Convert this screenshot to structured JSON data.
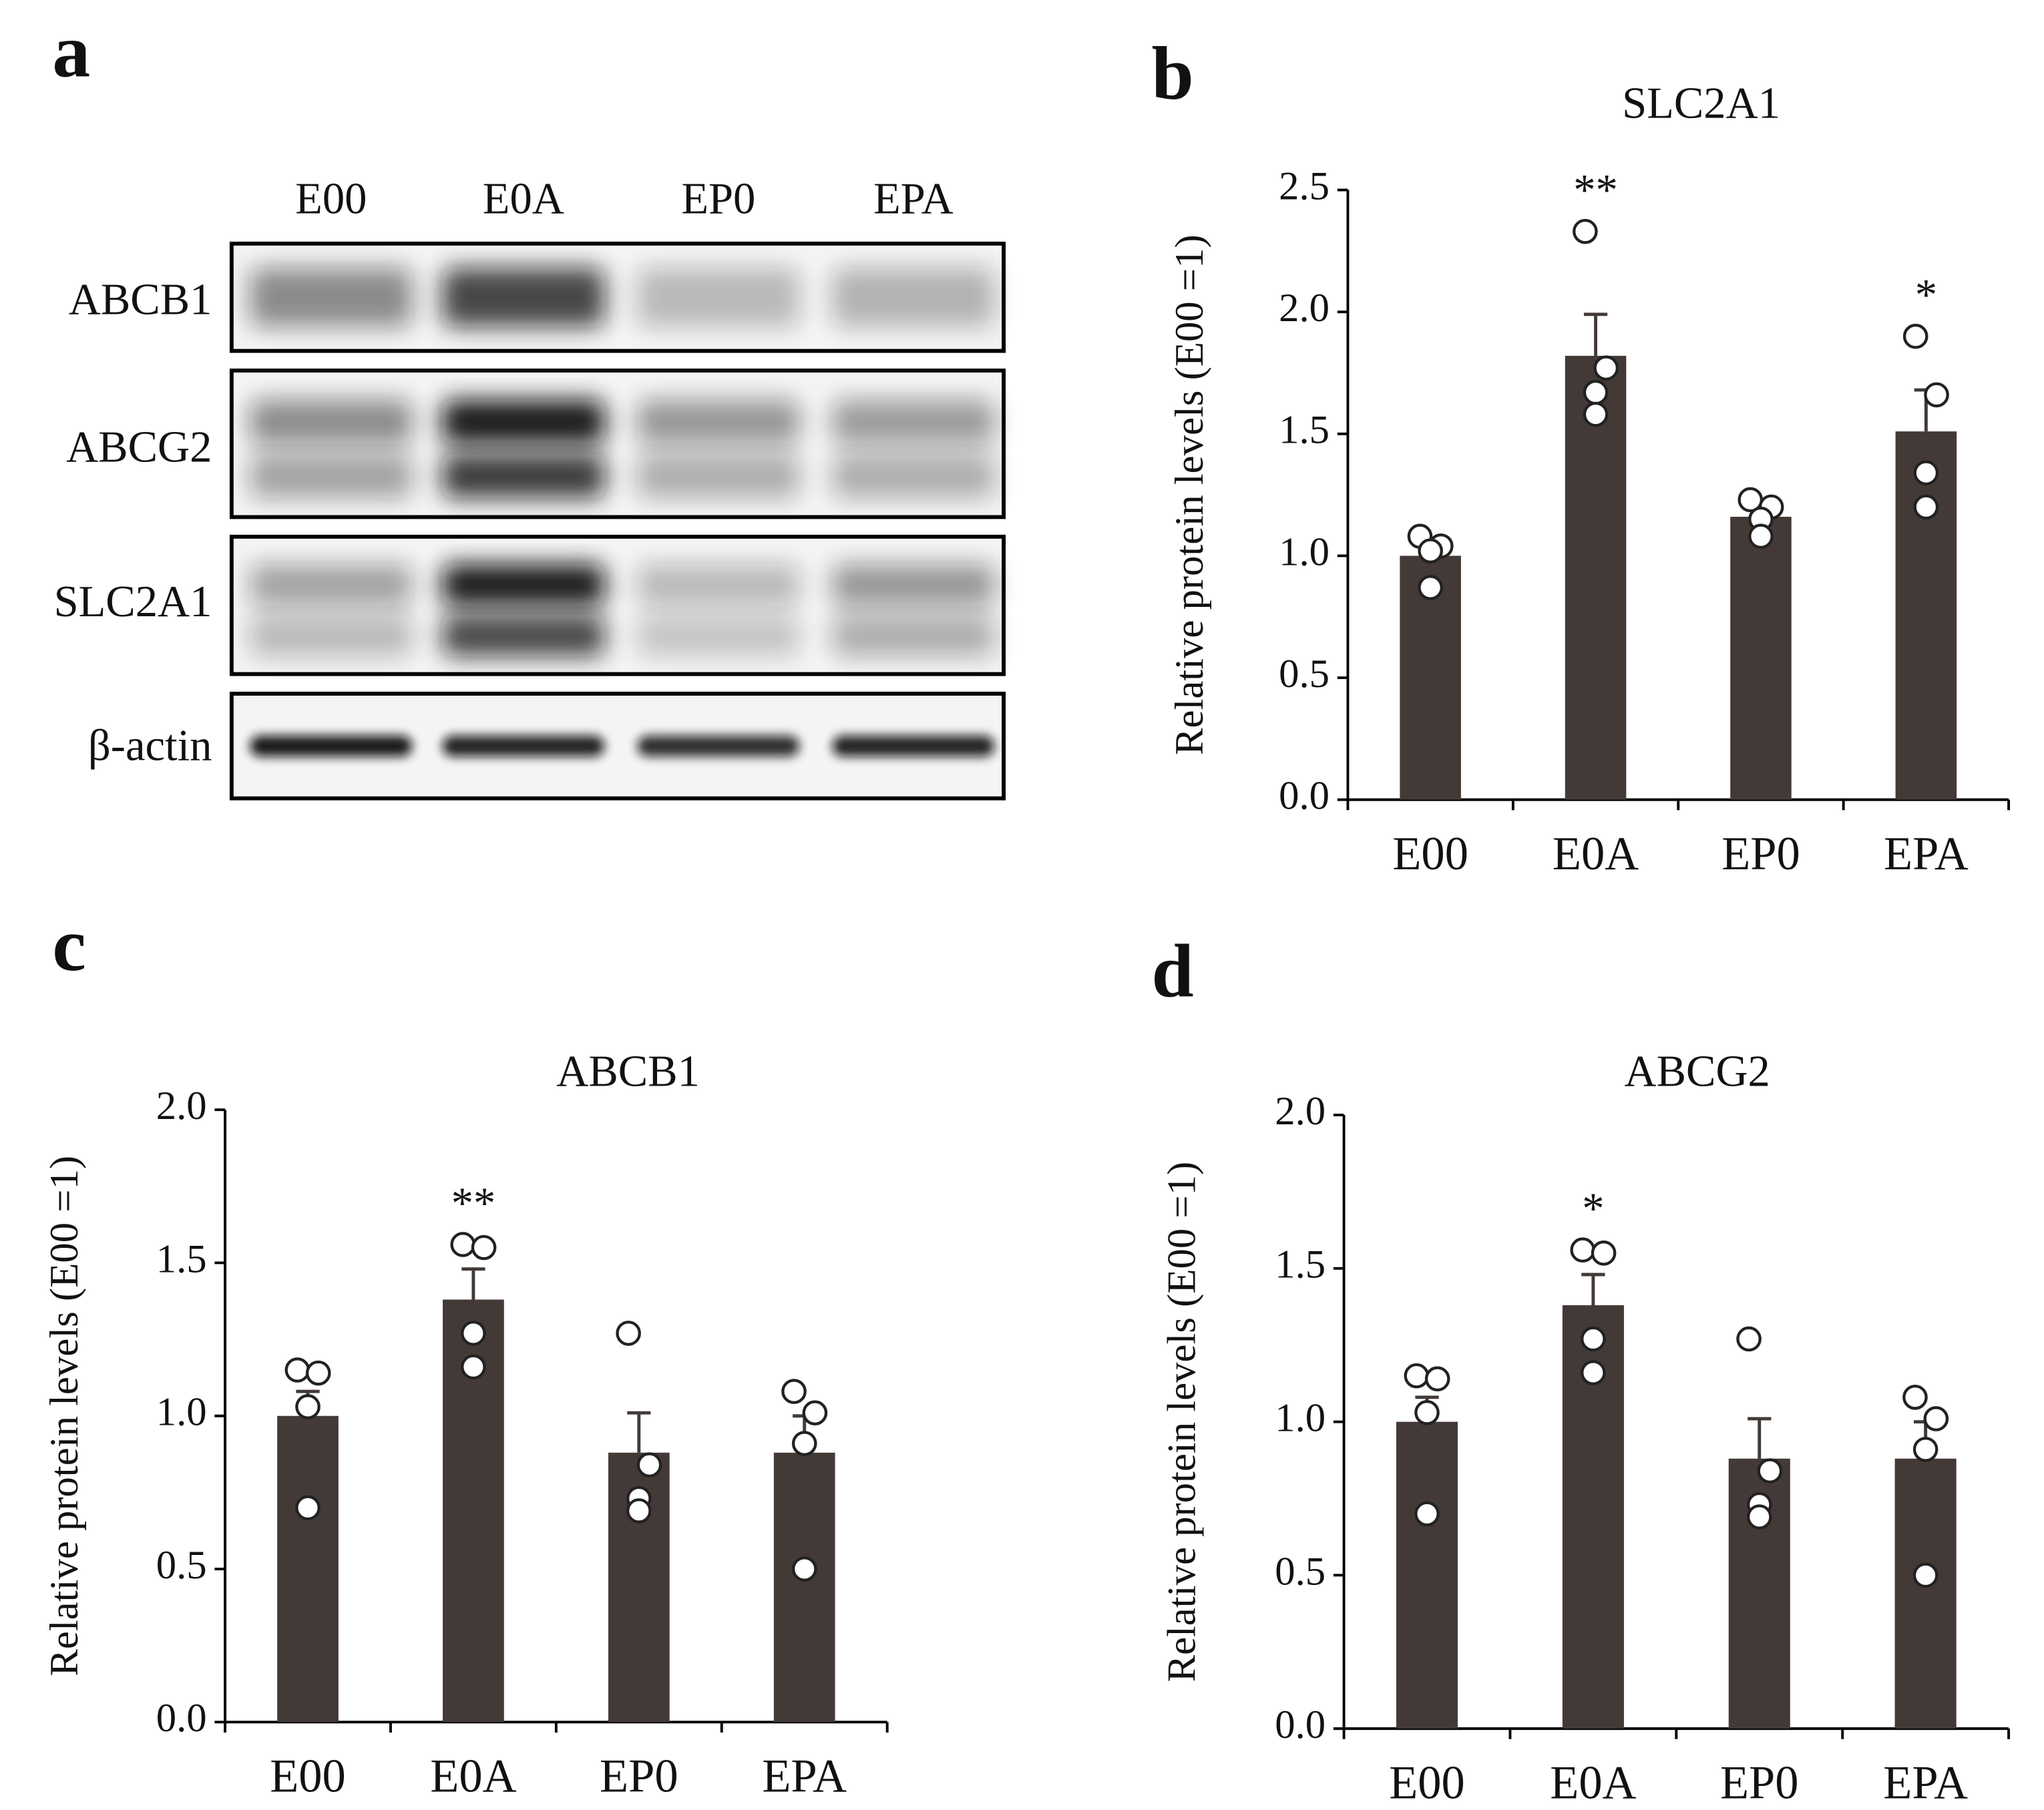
{
  "panel_labels": [
    "a",
    "b",
    "c",
    "d"
  ],
  "blot": {
    "lanes": [
      "E00",
      "E0A",
      "EP0",
      "EPA"
    ],
    "rows": [
      "ABCB1",
      "ABCG2",
      "SLC2A1",
      "β-actin"
    ]
  },
  "chart_data": [
    {
      "type": "bar",
      "title": "SLC2A1",
      "y_label": "Relative protein levels (E00 =1)",
      "color": "#433a37",
      "categories": [
        "E00",
        "E0A",
        "EP0",
        "EPA"
      ],
      "values": [
        1.0,
        1.82,
        1.16,
        1.51
      ],
      "errors": [
        0.05,
        0.17,
        0.04,
        0.17
      ],
      "points": [
        [
          1.08,
          1.04,
          1.02,
          0.87
        ],
        [
          2.33,
          1.77,
          1.67,
          1.58
        ],
        [
          1.23,
          1.2,
          1.15,
          1.08
        ],
        [
          1.9,
          1.66,
          1.34,
          1.2
        ]
      ],
      "significance": [
        null,
        "**",
        null,
        "*"
      ],
      "ylim": [
        0,
        2.5
      ],
      "yticks": [
        {
          "value": 0,
          "label": "0.0"
        },
        0.5,
        {
          "value": 1,
          "label": "1.0"
        },
        1.5,
        {
          "value": 2,
          "label": "2.0"
        },
        2.5
      ]
    },
    {
      "type": "bar",
      "title": "ABCB1",
      "y_label": "Relative protein levels (E00 =1)",
      "color": "#433a37",
      "categories": [
        "E00",
        "E0A",
        "EP0",
        "EPA"
      ],
      "values": [
        1.0,
        1.38,
        0.88,
        0.88
      ],
      "errors": [
        0.08,
        0.1,
        0.13,
        0.12
      ],
      "points": [
        [
          1.15,
          1.14,
          1.03,
          0.7
        ],
        [
          1.56,
          1.55,
          1.27,
          1.16
        ],
        [
          1.27,
          0.84,
          0.73,
          0.69
        ],
        [
          1.08,
          1.01,
          0.91,
          0.5
        ]
      ],
      "significance": [
        null,
        "**",
        null,
        null
      ],
      "ylim": [
        0,
        2.0
      ],
      "yticks": [
        {
          "value": 0,
          "label": "0.0"
        },
        0.5,
        {
          "value": 1,
          "label": "1.0"
        },
        1.5,
        {
          "value": 2,
          "label": "2.0"
        }
      ]
    },
    {
      "type": "bar",
      "title": "ABCG2",
      "y_label": "Relative protein levels (E00 =1)",
      "color": "#433a37",
      "categories": [
        "E00",
        "E0A",
        "EP0",
        "EPA"
      ],
      "values": [
        1.0,
        1.38,
        0.88,
        0.88
      ],
      "errors": [
        0.08,
        0.1,
        0.13,
        0.12
      ],
      "points": [
        [
          1.15,
          1.14,
          1.03,
          0.7
        ],
        [
          1.56,
          1.55,
          1.27,
          1.16
        ],
        [
          1.27,
          0.84,
          0.73,
          0.69
        ],
        [
          1.08,
          1.01,
          0.91,
          0.5
        ]
      ],
      "significance": [
        null,
        "*",
        null,
        null
      ],
      "ylim": [
        0,
        2.0
      ],
      "yticks": [
        {
          "value": 0,
          "label": "0.0"
        },
        0.5,
        {
          "value": 1,
          "label": "1.0"
        },
        1.5,
        {
          "value": 2,
          "label": "2.0"
        }
      ]
    }
  ]
}
